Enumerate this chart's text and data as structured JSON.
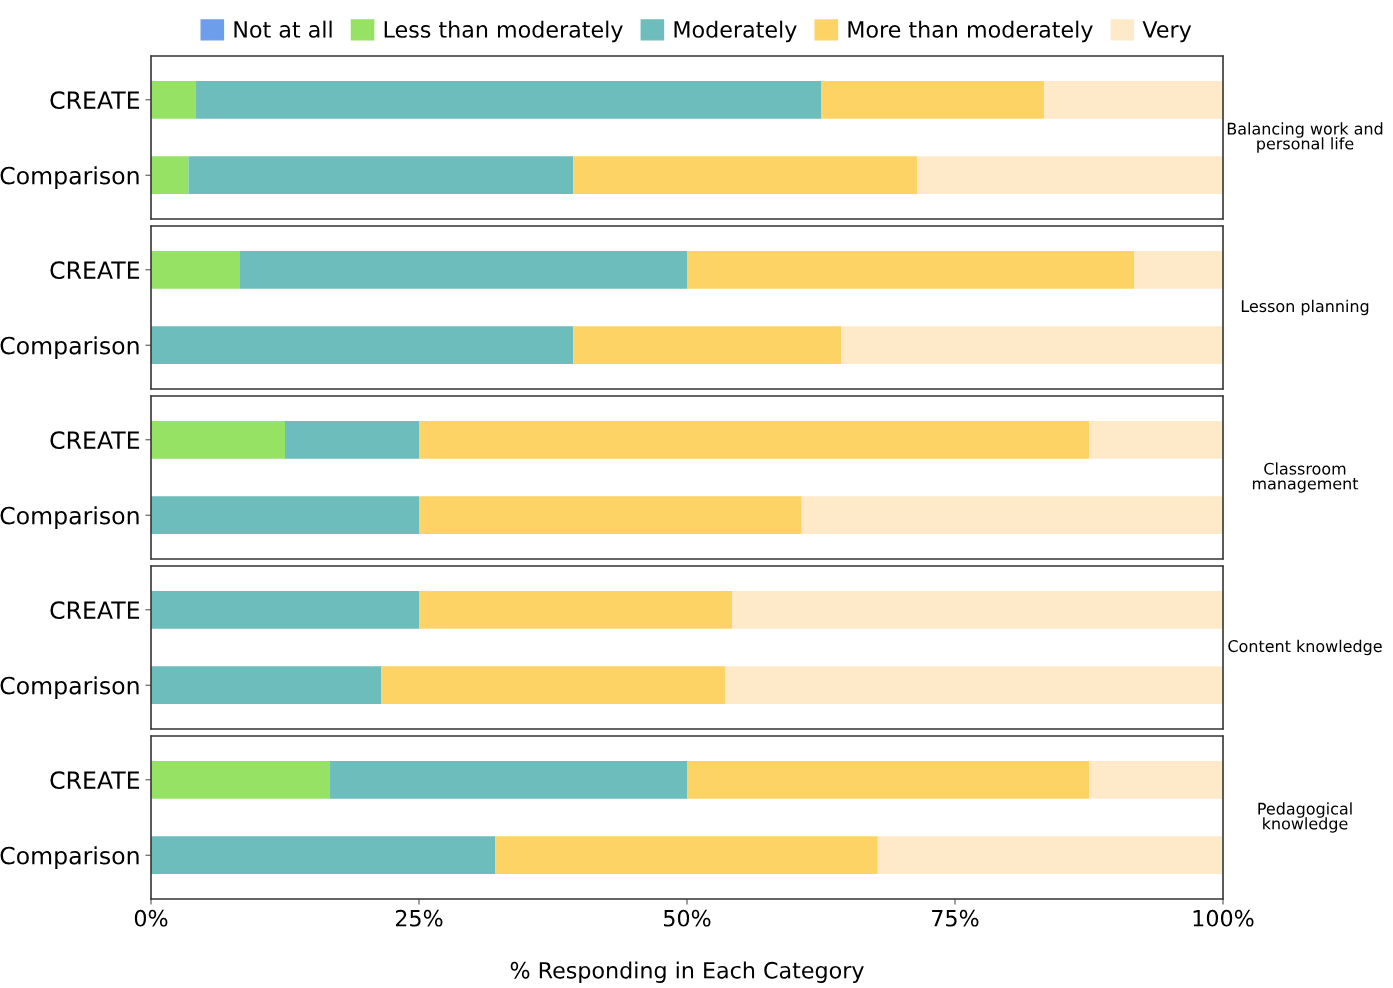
{
  "chart_data": [
    {
      "type": "bar",
      "orientation": "horizontal",
      "stacked": true,
      "y2label": "Balancing work and personal life",
      "categories": [
        "CREATE",
        "Comparison"
      ],
      "legend": "top",
      "xlim": [
        0,
        100
      ],
      "tick_labels": "y",
      "series": [
        {
          "name": "Not at all",
          "color": "#6d9eeb",
          "values": [
            0,
            0
          ]
        },
        {
          "name": "Less than moderately",
          "color": "#95e264",
          "values": [
            4.2,
            3.5
          ]
        },
        {
          "name": "Moderately",
          "color": "#6dbdbd",
          "values": [
            58.3,
            35.9
          ]
        },
        {
          "name": "More than moderately",
          "color": "#fed366",
          "values": [
            20.8,
            32.1
          ]
        },
        {
          "name": "Very",
          "color": "#feeac8",
          "values": [
            16.7,
            28.5
          ]
        }
      ]
    },
    {
      "type": "bar",
      "orientation": "horizontal",
      "stacked": true,
      "y2label": "Lesson planning",
      "categories": [
        "CREATE",
        "Comparison"
      ],
      "xlim": [
        0,
        100
      ],
      "tick_labels": "y",
      "series": [
        {
          "color": "#6d9eeb",
          "values": [
            0,
            0
          ]
        },
        {
          "color": "#95e264",
          "values": [
            8.3,
            0
          ]
        },
        {
          "color": "#6dbdbd",
          "values": [
            41.7,
            39.4
          ]
        },
        {
          "color": "#fed366",
          "values": [
            41.7,
            25.0
          ]
        },
        {
          "color": "#feeac8",
          "values": [
            8.3,
            35.6
          ]
        }
      ]
    },
    {
      "type": "bar",
      "orientation": "horizontal",
      "stacked": true,
      "y2label": "Classroom management",
      "categories": [
        "CREATE",
        "Comparison"
      ],
      "xlim": [
        0,
        100
      ],
      "tick_labels": "y",
      "series": [
        {
          "color": "#6d9eeb",
          "values": [
            0,
            0
          ]
        },
        {
          "color": "#95e264",
          "values": [
            12.5,
            0
          ]
        },
        {
          "color": "#6dbdbd",
          "values": [
            12.5,
            25.0
          ]
        },
        {
          "color": "#fed366",
          "values": [
            62.5,
            35.7
          ]
        },
        {
          "color": "#feeac8",
          "values": [
            12.5,
            39.3
          ]
        }
      ]
    },
    {
      "type": "bar",
      "orientation": "horizontal",
      "stacked": true,
      "y2label": "Content knowledge",
      "categories": [
        "CREATE",
        "Comparison"
      ],
      "xlim": [
        0,
        100
      ],
      "tick_labels": "y",
      "series": [
        {
          "color": "#6d9eeb",
          "values": [
            0,
            0
          ]
        },
        {
          "color": "#95e264",
          "values": [
            0,
            0
          ]
        },
        {
          "color": "#6dbdbd",
          "values": [
            25.0,
            21.5
          ]
        },
        {
          "color": "#fed366",
          "values": [
            29.2,
            32.1
          ]
        },
        {
          "color": "#feeac8",
          "values": [
            45.8,
            46.4
          ]
        }
      ]
    },
    {
      "type": "bar",
      "orientation": "horizontal",
      "stacked": true,
      "y2label": "Pedagogical knowledge",
      "categories": [
        "CREATE",
        "Comparison"
      ],
      "xlabel": "% Responding in Each Category",
      "xlim": [
        0,
        100
      ],
      "xticks": [
        {
          "value": 0,
          "label": "0%"
        },
        {
          "value": 25,
          "label": "25%"
        },
        {
          "value": 50,
          "label": "50%"
        },
        {
          "value": 75,
          "label": "75%"
        },
        {
          "value": 100,
          "label": "100%"
        }
      ],
      "series": [
        {
          "color": "#6d9eeb",
          "values": [
            0,
            0
          ]
        },
        {
          "color": "#95e264",
          "values": [
            16.7,
            0
          ]
        },
        {
          "color": "#6dbdbd",
          "values": [
            33.3,
            32.1
          ]
        },
        {
          "color": "#fed366",
          "values": [
            37.5,
            35.7
          ]
        },
        {
          "color": "#feeac8",
          "values": [
            12.5,
            32.1
          ]
        }
      ]
    }
  ]
}
